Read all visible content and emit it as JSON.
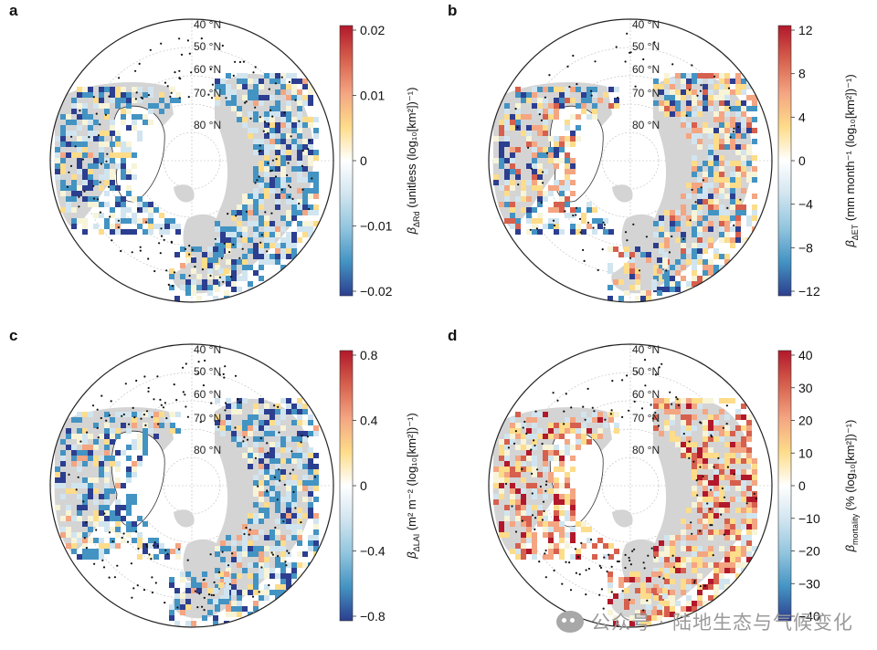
{
  "panels": [
    {
      "label": "a",
      "title_prefix": "β",
      "title_sub": "ΔRd",
      "title_text": " (unitless (log₁₀[km²])⁻¹)",
      "ticks": [
        "0.02",
        "0.01",
        "0",
        "−0.01",
        "−0.02"
      ],
      "pattern": "neg",
      "dots": "many"
    },
    {
      "label": "b",
      "title_prefix": "β",
      "title_sub": "ΔET",
      "title_text": " (mm month⁻¹ (log₁₀[km²])⁻¹)",
      "ticks": [
        "12",
        "8",
        "4",
        "0",
        "−4",
        "−8",
        "−12"
      ],
      "pattern": "mixed",
      "dots": "some"
    },
    {
      "label": "c",
      "title_prefix": "β",
      "title_sub": "ΔLAI",
      "title_text": " (m² m⁻² (log₁₀[km²])⁻¹)",
      "ticks": [
        "0.8",
        "0.4",
        "0",
        "−0.4",
        "−0.8"
      ],
      "pattern": "neg",
      "dots": "many"
    },
    {
      "label": "d",
      "title_prefix": "β",
      "title_sub": "mortality",
      "title_text": " (% (log₁₀[km²])⁻¹)",
      "ticks": [
        "40",
        "30",
        "20",
        "10",
        "0",
        "−10",
        "−20",
        "−30",
        "−40"
      ],
      "pattern": "pos",
      "dots": "many"
    }
  ],
  "lat_labels": [
    "40 °N",
    "50 °N",
    "60 °N",
    "70 °N",
    "80 °N"
  ],
  "watermark": "公众号 · 陆地生态与气候变化",
  "colors": {
    "strong_red": "#b2182b",
    "red": "#d6604d",
    "orange": "#f4a582",
    "yellow": "#fddc8a",
    "pale": "#f7f4d8",
    "light_blue": "#d1e5f0",
    "blue": "#4393c3",
    "dark_blue": "#2c3e8f",
    "land_grey": "#d4d4d4"
  }
}
